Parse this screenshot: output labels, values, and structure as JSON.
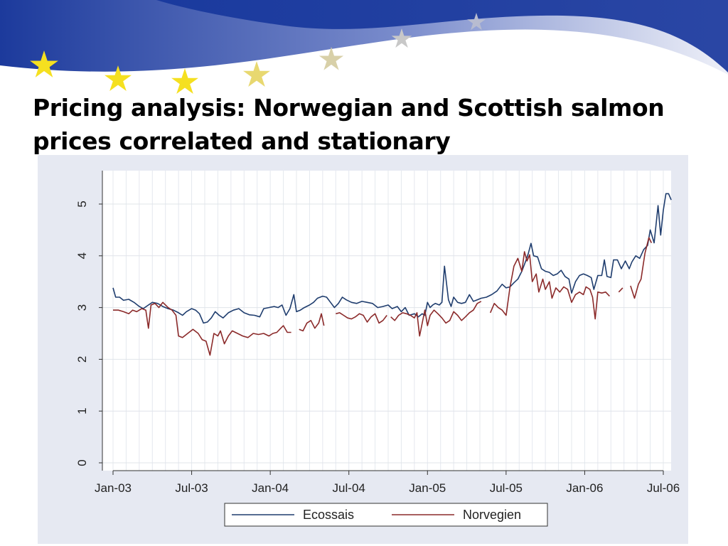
{
  "slide": {
    "title_line1": "Pricing analysis: Norwegian and Scottish salmon",
    "title_line2": "prices correlated and stationary"
  },
  "colors": {
    "banner_blue": "#2a44a0",
    "star_yellow": "#f5e020",
    "series_ecossais": "#1f3d6e",
    "series_norvegien": "#8b2a2a"
  },
  "chart_data": {
    "type": "line",
    "title": "",
    "xlabel": "",
    "ylabel": "",
    "x_unit": "months since Jan-03",
    "xlim": [
      0,
      42
    ],
    "ylim": [
      0,
      5.5
    ],
    "x_ticks": [
      {
        "value": 0,
        "label": "Jan-03"
      },
      {
        "value": 6,
        "label": "Jul-03"
      },
      {
        "value": 12,
        "label": "Jan-04"
      },
      {
        "value": 18,
        "label": "Jul-04"
      },
      {
        "value": 24,
        "label": "Jan-05"
      },
      {
        "value": 30,
        "label": "Jul-05"
      },
      {
        "value": 36,
        "label": "Jan-06"
      },
      {
        "value": 42,
        "label": "Jul-06"
      }
    ],
    "y_ticks": [
      {
        "value": 0,
        "label": "0"
      },
      {
        "value": 1,
        "label": "1"
      },
      {
        "value": 2,
        "label": "2"
      },
      {
        "value": 3,
        "label": "3"
      },
      {
        "value": 4,
        "label": "4"
      },
      {
        "value": 5,
        "label": "5"
      }
    ],
    "grid": true,
    "legend_position": "bottom",
    "series": [
      {
        "name": "Ecossais",
        "color": "#1f3d6e",
        "points": [
          [
            0,
            3.38
          ],
          [
            0.2,
            3.2
          ],
          [
            0.5,
            3.2
          ],
          [
            0.8,
            3.14
          ],
          [
            1.2,
            3.16
          ],
          [
            1.6,
            3.1
          ],
          [
            2.0,
            3.02
          ],
          [
            2.3,
            2.98
          ],
          [
            2.7,
            3.05
          ],
          [
            3.0,
            3.1
          ],
          [
            3.4,
            3.08
          ],
          [
            3.8,
            3.02
          ],
          [
            4.2,
            2.98
          ],
          [
            4.6,
            2.95
          ],
          [
            5.0,
            2.9
          ],
          [
            5.3,
            2.85
          ],
          [
            5.6,
            2.92
          ],
          [
            6.0,
            2.98
          ],
          [
            6.3,
            2.95
          ],
          [
            6.6,
            2.88
          ],
          [
            6.9,
            2.7
          ],
          [
            7.2,
            2.72
          ],
          [
            7.5,
            2.8
          ],
          [
            7.8,
            2.92
          ],
          [
            8.1,
            2.85
          ],
          [
            8.4,
            2.8
          ],
          [
            8.8,
            2.9
          ],
          [
            9.2,
            2.95
          ],
          [
            9.6,
            2.98
          ],
          [
            10.0,
            2.9
          ],
          [
            10.4,
            2.86
          ],
          [
            10.8,
            2.85
          ],
          [
            11.2,
            2.82
          ],
          [
            11.5,
            2.98
          ],
          [
            11.9,
            3.0
          ],
          [
            12.3,
            3.02
          ],
          [
            12.6,
            3.0
          ],
          [
            12.9,
            3.05
          ],
          [
            13.2,
            2.85
          ],
          [
            13.5,
            2.98
          ],
          [
            13.8,
            3.25
          ],
          [
            14.0,
            2.92
          ],
          [
            14.3,
            2.95
          ],
          [
            14.6,
            3.0
          ],
          [
            15.0,
            3.05
          ],
          [
            15.3,
            3.1
          ],
          [
            15.6,
            3.18
          ],
          [
            16.0,
            3.22
          ],
          [
            16.3,
            3.2
          ],
          [
            16.6,
            3.1
          ],
          [
            16.9,
            3.0
          ],
          [
            17.2,
            3.08
          ],
          [
            17.5,
            3.2
          ],
          [
            17.8,
            3.15
          ],
          [
            18.2,
            3.1
          ],
          [
            18.6,
            3.08
          ],
          [
            19.0,
            3.12
          ],
          [
            19.4,
            3.1
          ],
          [
            19.8,
            3.08
          ],
          [
            20.2,
            3.0
          ],
          [
            20.6,
            3.02
          ],
          [
            21.0,
            3.05
          ],
          [
            21.3,
            2.98
          ],
          [
            21.7,
            3.02
          ],
          [
            22.0,
            2.92
          ],
          [
            22.3,
            3.0
          ],
          [
            22.6,
            2.85
          ],
          [
            23.0,
            2.88
          ],
          [
            23.3,
            2.82
          ],
          [
            23.6,
            2.88
          ],
          [
            23.8,
            2.85
          ],
          [
            24.0,
            3.1
          ],
          [
            24.2,
            3.0
          ],
          [
            24.4,
            3.05
          ],
          [
            24.6,
            3.08
          ],
          [
            24.9,
            3.05
          ],
          [
            25.1,
            3.1
          ],
          [
            25.3,
            3.8
          ],
          [
            25.6,
            3.15
          ],
          [
            25.8,
            3.02
          ],
          [
            26.0,
            3.2
          ],
          [
            26.3,
            3.1
          ],
          [
            26.6,
            3.08
          ],
          [
            26.9,
            3.1
          ],
          [
            27.2,
            3.25
          ],
          [
            27.5,
            3.12
          ],
          [
            27.8,
            3.15
          ],
          [
            28.1,
            3.18
          ],
          [
            28.5,
            3.2
          ],
          [
            28.9,
            3.25
          ],
          [
            29.3,
            3.32
          ],
          [
            29.7,
            3.45
          ],
          [
            30.0,
            3.38
          ],
          [
            30.3,
            3.4
          ],
          [
            30.6,
            3.48
          ],
          [
            30.9,
            3.55
          ],
          [
            31.2,
            3.7
          ],
          [
            31.5,
            3.9
          ],
          [
            31.7,
            4.05
          ],
          [
            31.9,
            4.24
          ],
          [
            32.1,
            4.0
          ],
          [
            32.4,
            3.98
          ],
          [
            32.7,
            3.75
          ],
          [
            33.0,
            3.7
          ],
          [
            33.3,
            3.68
          ],
          [
            33.6,
            3.62
          ],
          [
            33.9,
            3.65
          ],
          [
            34.2,
            3.72
          ],
          [
            34.5,
            3.6
          ],
          [
            34.8,
            3.55
          ],
          [
            35.0,
            3.28
          ],
          [
            35.3,
            3.5
          ],
          [
            35.6,
            3.62
          ],
          [
            35.9,
            3.65
          ],
          [
            36.2,
            3.62
          ],
          [
            36.5,
            3.58
          ],
          [
            36.7,
            3.35
          ],
          [
            37.0,
            3.62
          ],
          [
            37.3,
            3.62
          ],
          [
            37.5,
            3.92
          ],
          [
            37.7,
            3.6
          ],
          [
            38.0,
            3.58
          ],
          [
            38.2,
            3.92
          ],
          [
            38.5,
            3.92
          ],
          [
            38.8,
            3.75
          ],
          [
            39.1,
            3.9
          ],
          [
            39.4,
            3.75
          ],
          [
            39.6,
            3.88
          ],
          [
            39.9,
            4.0
          ],
          [
            40.2,
            3.95
          ],
          [
            40.5,
            4.12
          ],
          [
            40.8,
            4.2
          ],
          [
            41.0,
            4.5
          ],
          [
            41.3,
            4.25
          ],
          [
            41.6,
            4.97
          ],
          [
            41.8,
            4.4
          ],
          [
            42.0,
            4.88
          ],
          [
            42.2,
            5.2
          ],
          [
            42.4,
            5.2
          ],
          [
            42.6,
            5.08
          ]
        ]
      },
      {
        "name": "Norvegien",
        "color": "#8b2a2a",
        "segments": [
          [
            [
              0,
              2.95
            ],
            [
              0.4,
              2.95
            ],
            [
              0.8,
              2.92
            ],
            [
              1.2,
              2.88
            ],
            [
              1.5,
              2.95
            ],
            [
              1.8,
              2.92
            ],
            [
              2.2,
              2.98
            ],
            [
              2.5,
              2.95
            ],
            [
              2.7,
              2.6
            ],
            [
              2.9,
              3.05
            ],
            [
              3.2,
              3.08
            ],
            [
              3.5,
              3.0
            ],
            [
              3.8,
              3.1
            ],
            [
              4.2,
              3.0
            ],
            [
              4.5,
              2.95
            ],
            [
              4.8,
              2.85
            ],
            [
              5.0,
              2.45
            ],
            [
              5.3,
              2.42
            ],
            [
              5.7,
              2.5
            ],
            [
              6.1,
              2.58
            ],
            [
              6.5,
              2.5
            ],
            [
              6.8,
              2.38
            ],
            [
              7.1,
              2.35
            ],
            [
              7.4,
              2.08
            ],
            [
              7.7,
              2.5
            ],
            [
              8.0,
              2.45
            ],
            [
              8.2,
              2.55
            ],
            [
              8.5,
              2.3
            ],
            [
              8.8,
              2.45
            ],
            [
              9.1,
              2.55
            ],
            [
              9.5,
              2.5
            ],
            [
              9.9,
              2.45
            ],
            [
              10.3,
              2.42
            ],
            [
              10.7,
              2.5
            ],
            [
              11.1,
              2.48
            ],
            [
              11.5,
              2.5
            ],
            [
              11.9,
              2.45
            ],
            [
              12.2,
              2.5
            ],
            [
              12.5,
              2.52
            ],
            [
              12.8,
              2.6
            ],
            [
              13.0,
              2.65
            ],
            [
              13.3,
              2.52
            ],
            [
              13.6,
              2.52
            ]
          ],
          [
            [
              14.2,
              2.58
            ],
            [
              14.5,
              2.55
            ],
            [
              14.8,
              2.7
            ],
            [
              15.1,
              2.75
            ],
            [
              15.4,
              2.6
            ],
            [
              15.7,
              2.7
            ],
            [
              15.9,
              2.88
            ],
            [
              16.1,
              2.65
            ]
          ],
          [
            [
              17.0,
              2.88
            ],
            [
              17.3,
              2.9
            ],
            [
              17.6,
              2.85
            ],
            [
              17.9,
              2.8
            ],
            [
              18.2,
              2.78
            ],
            [
              18.5,
              2.82
            ],
            [
              18.8,
              2.88
            ],
            [
              19.1,
              2.85
            ],
            [
              19.4,
              2.72
            ],
            [
              19.7,
              2.82
            ],
            [
              20.0,
              2.88
            ],
            [
              20.3,
              2.7
            ],
            [
              20.6,
              2.75
            ],
            [
              20.9,
              2.85
            ]
          ],
          [
            [
              21.2,
              2.82
            ],
            [
              21.5,
              2.75
            ],
            [
              21.8,
              2.85
            ],
            [
              22.1,
              2.9
            ],
            [
              22.4,
              2.88
            ],
            [
              22.7,
              2.85
            ],
            [
              23.0,
              2.8
            ],
            [
              23.2,
              2.9
            ],
            [
              23.4,
              2.45
            ],
            [
              23.6,
              2.7
            ],
            [
              23.8,
              2.95
            ],
            [
              24.0,
              2.65
            ],
            [
              24.2,
              2.85
            ],
            [
              24.5,
              2.95
            ],
            [
              24.8,
              2.88
            ],
            [
              25.1,
              2.8
            ],
            [
              25.4,
              2.7
            ],
            [
              25.7,
              2.75
            ],
            [
              26.0,
              2.92
            ],
            [
              26.3,
              2.85
            ],
            [
              26.6,
              2.75
            ],
            [
              26.9,
              2.82
            ],
            [
              27.2,
              2.9
            ],
            [
              27.5,
              2.95
            ],
            [
              27.8,
              3.08
            ],
            [
              28.1,
              3.12
            ]
          ],
          [
            [
              28.8,
              2.9
            ],
            [
              29.1,
              3.08
            ],
            [
              29.4,
              3.0
            ],
            [
              29.7,
              2.95
            ],
            [
              30.0,
              2.85
            ],
            [
              30.3,
              3.4
            ],
            [
              30.6,
              3.8
            ],
            [
              30.9,
              3.95
            ],
            [
              31.2,
              3.7
            ],
            [
              31.4,
              4.08
            ],
            [
              31.6,
              3.9
            ],
            [
              31.8,
              4.02
            ],
            [
              32.0,
              3.5
            ],
            [
              32.3,
              3.65
            ],
            [
              32.5,
              3.3
            ],
            [
              32.8,
              3.55
            ],
            [
              33.0,
              3.35
            ],
            [
              33.3,
              3.5
            ],
            [
              33.5,
              3.18
            ],
            [
              33.8,
              3.38
            ],
            [
              34.1,
              3.3
            ],
            [
              34.4,
              3.4
            ],
            [
              34.7,
              3.35
            ],
            [
              35.0,
              3.1
            ],
            [
              35.3,
              3.25
            ],
            [
              35.6,
              3.3
            ],
            [
              35.9,
              3.25
            ],
            [
              36.1,
              3.4
            ],
            [
              36.4,
              3.35
            ],
            [
              36.6,
              3.2
            ],
            [
              36.8,
              2.78
            ],
            [
              37.0,
              3.3
            ],
            [
              37.3,
              3.28
            ],
            [
              37.6,
              3.3
            ],
            [
              37.9,
              3.22
            ]
          ],
          [
            [
              38.6,
              3.3
            ],
            [
              38.9,
              3.38
            ]
          ],
          [
            [
              39.5,
              3.42
            ],
            [
              39.8,
              3.18
            ],
            [
              40.1,
              3.45
            ],
            [
              40.3,
              3.55
            ],
            [
              40.6,
              4.05
            ],
            [
              40.9,
              4.35
            ],
            [
              41.1,
              4.25
            ]
          ]
        ]
      }
    ]
  }
}
